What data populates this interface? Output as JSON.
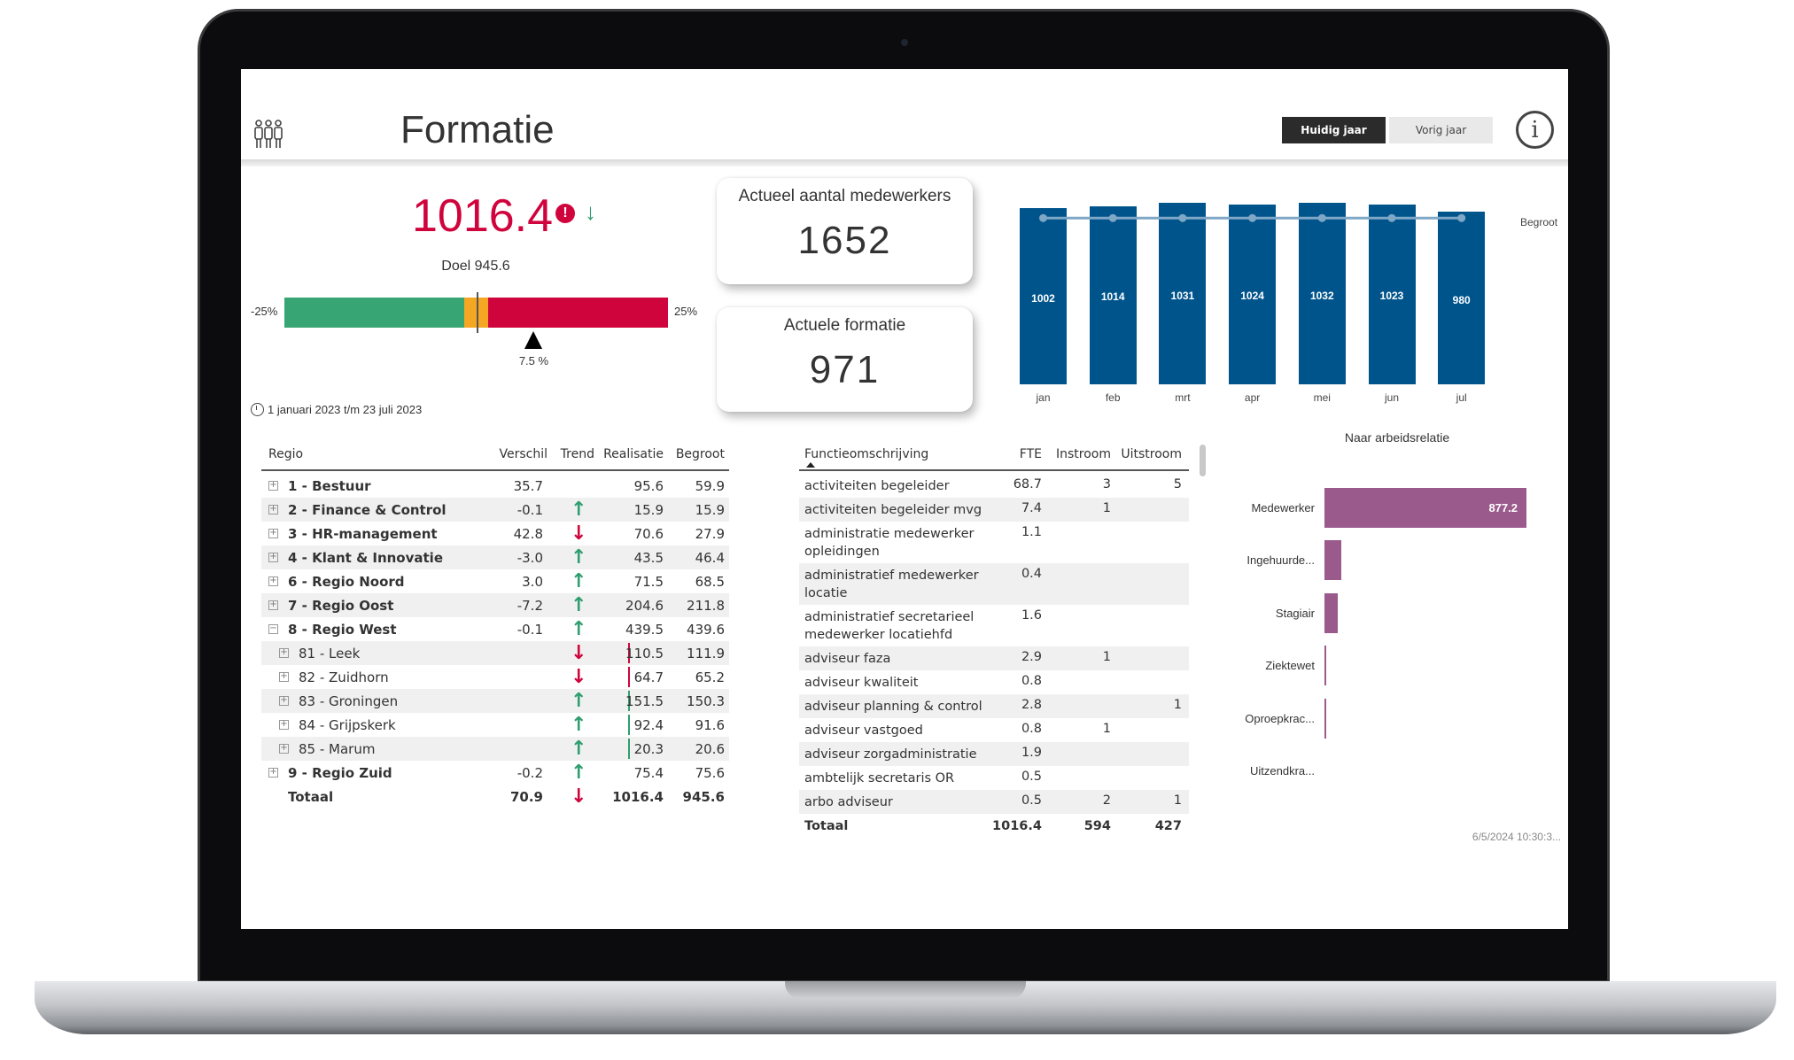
{
  "header": {
    "title": "Formatie",
    "icon": "people-group-icon",
    "toggle": {
      "active": "Huidig jaar",
      "inactive": "Vorig jaar"
    },
    "info_icon": "info-icon",
    "info_glyph": "i"
  },
  "kpi": {
    "value": "1016.4",
    "alert_glyph": "!",
    "trend_glyph": "↓",
    "doel": "Doel 945.6",
    "gauge": {
      "min_label": "-25%",
      "max_label": "25%",
      "value_pct": 7.5,
      "value_label": "7.5 %",
      "target_pct": 0,
      "green_to_pct": -1.6,
      "orange_to_pct": 1.6
    },
    "colors": {
      "value": "#d0043c",
      "green": "#37a574",
      "orange": "#f5a623",
      "red": "#d0043c"
    },
    "period": "1 januari 2023 t/m 23 juli 2023"
  },
  "cards": [
    {
      "label": "Actueel aantal medewerkers",
      "value": "1652"
    },
    {
      "label": "Actuele formatie",
      "value": "971"
    }
  ],
  "chart_data": [
    {
      "type": "bar",
      "categories": [
        "jan",
        "feb",
        "mrt",
        "apr",
        "mei",
        "jun",
        "jul"
      ],
      "series": [
        {
          "values": [
            1002,
            1014,
            1031,
            1024,
            1032,
            1023,
            980
          ],
          "color": "#00548c"
        },
        {
          "name": "Begroot",
          "type": "line",
          "values": [
            945.6,
            945.6,
            945.6,
            945.6,
            945.6,
            945.6,
            945.6
          ],
          "color": "#7fa7c6"
        }
      ],
      "ylim": [
        0,
        1040
      ],
      "legend": "right"
    },
    {
      "type": "bar",
      "orientation": "horizontal",
      "title": "Naar arbeidsrelatie",
      "categories": [
        "Medewerker",
        "Ingehuurde...",
        "Stagiair",
        "Ziektewet",
        "Oproepkrac...",
        "Uitzendkra..."
      ],
      "values": [
        877.2,
        74,
        58,
        4,
        4,
        0
      ],
      "data_labels": [
        "877.2",
        "",
        "",
        "",
        "",
        ""
      ],
      "color": "#9a5a8c"
    }
  ],
  "regio_table": {
    "columns": [
      "Regio",
      "Verschil",
      "Trend",
      "Realisatie",
      "Begroot"
    ],
    "rows": [
      {
        "label": "1 - Bestuur",
        "level": 0,
        "expand": "+",
        "verschil": "35.7",
        "trend": "",
        "realisatie": "95.6",
        "begroot": "59.9"
      },
      {
        "label": "2 - Finance & Control",
        "level": 0,
        "expand": "+",
        "verschil": "-0.1",
        "trend": "up",
        "realisatie": "15.9",
        "begroot": "15.9"
      },
      {
        "label": "3 - HR-management",
        "level": 0,
        "expand": "+",
        "verschil": "42.8",
        "trend": "down",
        "realisatie": "70.6",
        "begroot": "27.9"
      },
      {
        "label": "4 - Klant & Innovatie",
        "level": 0,
        "expand": "+",
        "verschil": "-3.0",
        "trend": "up",
        "realisatie": "43.5",
        "begroot": "46.4"
      },
      {
        "label": "6 - Regio Noord",
        "level": 0,
        "expand": "+",
        "verschil": "3.0",
        "trend": "up",
        "realisatie": "71.5",
        "begroot": "68.5"
      },
      {
        "label": "7 - Regio Oost",
        "level": 0,
        "expand": "+",
        "verschil": "-7.2",
        "trend": "up",
        "realisatie": "204.6",
        "begroot": "211.8"
      },
      {
        "label": "8 - Regio West",
        "level": 0,
        "expand": "−",
        "verschil": "-0.1",
        "trend": "up",
        "realisatie": "439.5",
        "begroot": "439.6"
      },
      {
        "label": "81 - Leek",
        "level": 1,
        "expand": "+",
        "verschil": "",
        "trend": "down",
        "realisatie": "110.5",
        "begroot": "111.9"
      },
      {
        "label": "82 - Zuidhorn",
        "level": 1,
        "expand": "+",
        "verschil": "",
        "trend": "down",
        "realisatie": "64.7",
        "begroot": "65.2"
      },
      {
        "label": "83 - Groningen",
        "level": 1,
        "expand": "+",
        "verschil": "",
        "trend": "up",
        "realisatie": "151.5",
        "begroot": "150.3"
      },
      {
        "label": "84 - Grijpskerk",
        "level": 1,
        "expand": "+",
        "verschil": "",
        "trend": "up",
        "realisatie": "92.4",
        "begroot": "91.6"
      },
      {
        "label": "85 - Marum",
        "level": 1,
        "expand": "+",
        "verschil": "",
        "trend": "up",
        "realisatie": "20.3",
        "begroot": "20.6"
      },
      {
        "label": "9 - Regio Zuid",
        "level": 0,
        "expand": "+",
        "verschil": "-0.2",
        "trend": "up",
        "realisatie": "75.4",
        "begroot": "75.6"
      }
    ],
    "total": {
      "label": "Totaal",
      "verschil": "70.9",
      "trend": "down",
      "realisatie": "1016.4",
      "begroot": "945.6"
    },
    "trend_colors": {
      "up": "#2e9e6e",
      "down": "#d0043c"
    }
  },
  "functie_table": {
    "columns": [
      "Functieomschrijving",
      "FTE",
      "Instroom",
      "Uitstroom"
    ],
    "sort": "ascending",
    "rows": [
      {
        "lines": [
          "activiteiten begeleider"
        ],
        "fte": "68.7",
        "in": "3",
        "uit": "5"
      },
      {
        "lines": [
          "activiteiten begeleider mvg"
        ],
        "fte": "7.4",
        "in": "1",
        "uit": ""
      },
      {
        "lines": [
          "administratie medewerker",
          "opleidingen"
        ],
        "fte": "1.1",
        "in": "",
        "uit": ""
      },
      {
        "lines": [
          "administratief medewerker",
          "locatie"
        ],
        "fte": "0.4",
        "in": "",
        "uit": ""
      },
      {
        "lines": [
          "administratief secretarieel",
          "medewerker locatiehfd"
        ],
        "fte": "1.6",
        "in": "",
        "uit": ""
      },
      {
        "lines": [
          "adviseur faza"
        ],
        "fte": "2.9",
        "in": "1",
        "uit": ""
      },
      {
        "lines": [
          "adviseur kwaliteit"
        ],
        "fte": "0.8",
        "in": "",
        "uit": ""
      },
      {
        "lines": [
          "adviseur planning & control"
        ],
        "fte": "2.8",
        "in": "",
        "uit": "1"
      },
      {
        "lines": [
          "adviseur vastgoed"
        ],
        "fte": "0.8",
        "in": "1",
        "uit": ""
      },
      {
        "lines": [
          "adviseur zorgadministratie"
        ],
        "fte": "1.9",
        "in": "",
        "uit": ""
      },
      {
        "lines": [
          "ambtelijk secretaris OR"
        ],
        "fte": "0.5",
        "in": "",
        "uit": ""
      },
      {
        "lines": [
          "arbo adviseur"
        ],
        "fte": "0.5",
        "in": "2",
        "uit": "1"
      }
    ],
    "total": {
      "label": "Totaal",
      "fte": "1016.4",
      "in": "594",
      "uit": "427"
    }
  },
  "footer": {
    "timestamp": "6/5/2024 10:30:3..."
  }
}
